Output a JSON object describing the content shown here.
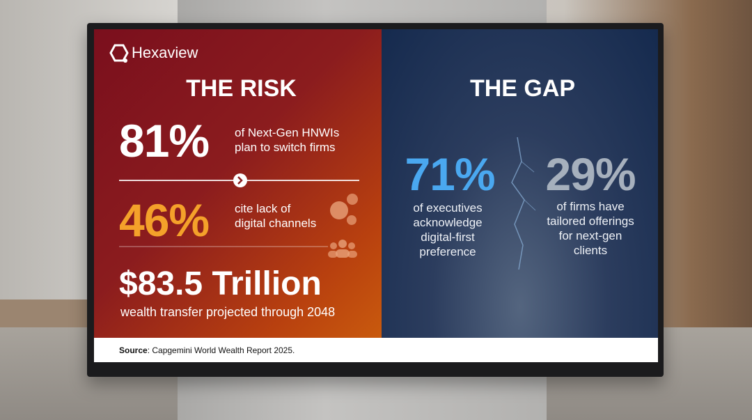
{
  "brand": "Hexaview",
  "risk": {
    "title": "THE RISK",
    "stats": [
      {
        "value": "81%",
        "lines": [
          "of Next-Gen HNWIs",
          "plan to switch firms"
        ]
      },
      {
        "value": "46%",
        "lines": [
          "cite lack of",
          "digital channels"
        ]
      }
    ],
    "headline": {
      "value": "$83.5 Trillion",
      "text": "wealth transfer projected through 2048"
    }
  },
  "gap": {
    "title": "THE GAP",
    "stats": [
      {
        "value": "71%",
        "lines": [
          "of executives",
          "acknowledge",
          "digital-first",
          "preference"
        ]
      },
      {
        "value": "29%",
        "lines": [
          "of firms have",
          "tailored offerings",
          "for next-gen",
          "clients"
        ]
      }
    ]
  },
  "source": {
    "label": "Source",
    "text": ": Capgemini World Wealth Report 2025."
  }
}
